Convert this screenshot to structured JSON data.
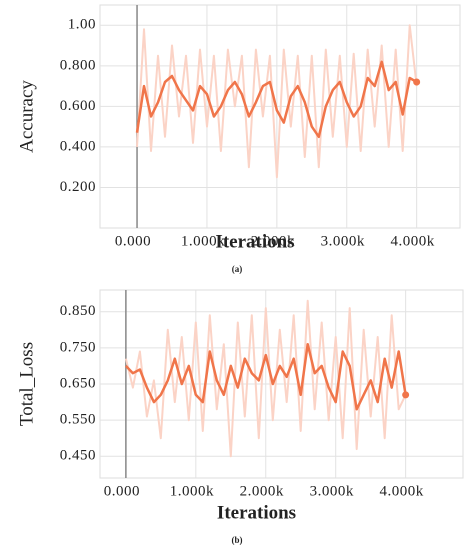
{
  "chart_data": [
    {
      "type": "line",
      "y_label": "Accuracy",
      "x_label": "Iterations",
      "caption": "(a)",
      "x": [
        0,
        100,
        200,
        300,
        400,
        500,
        600,
        700,
        800,
        900,
        1000,
        1100,
        1200,
        1300,
        1400,
        1500,
        1600,
        1700,
        1800,
        1900,
        2000,
        2100,
        2200,
        2300,
        2400,
        2500,
        2600,
        2700,
        2800,
        2900,
        3000,
        3100,
        3200,
        3300,
        3400,
        3500,
        3600,
        3700,
        3800,
        3900,
        4000
      ],
      "series": [
        {
          "color": "#fbd3c6",
          "values": [
            0.4,
            0.98,
            0.38,
            0.85,
            0.45,
            0.9,
            0.55,
            0.85,
            0.42,
            0.88,
            0.5,
            0.85,
            0.38,
            0.88,
            0.6,
            0.85,
            0.3,
            0.88,
            0.55,
            0.85,
            0.25,
            0.88,
            0.5,
            0.85,
            0.35,
            0.85,
            0.3,
            0.88,
            0.45,
            0.85,
            0.4,
            0.86,
            0.38,
            0.88,
            0.5,
            0.9,
            0.4,
            0.88,
            0.38,
            1.0,
            0.7
          ]
        },
        {
          "color": "#f0754a",
          "values": [
            0.47,
            0.7,
            0.55,
            0.62,
            0.72,
            0.75,
            0.68,
            0.63,
            0.58,
            0.7,
            0.66,
            0.55,
            0.6,
            0.68,
            0.72,
            0.66,
            0.55,
            0.62,
            0.7,
            0.72,
            0.58,
            0.52,
            0.65,
            0.7,
            0.62,
            0.5,
            0.45,
            0.6,
            0.68,
            0.72,
            0.62,
            0.55,
            0.6,
            0.74,
            0.7,
            0.82,
            0.68,
            0.72,
            0.56,
            0.74,
            0.72
          ]
        }
      ],
      "xlim": [
        -530,
        4620
      ],
      "ylim": [
        0.0,
        1.1
      ],
      "xticks": [
        {
          "value": 0,
          "label": "0.000"
        },
        {
          "value": 1000,
          "label": "1.000k"
        },
        {
          "value": 2000,
          "label": "2.000k"
        },
        {
          "value": 3000,
          "label": "3.000k"
        },
        {
          "value": 4000,
          "label": "4.000k"
        }
      ],
      "yticks": [
        {
          "value": 0.2,
          "label": "0.200"
        },
        {
          "value": 0.4,
          "label": "0.400"
        },
        {
          "value": 0.6,
          "label": "0.600"
        },
        {
          "value": 0.8,
          "label": "0.800"
        },
        {
          "value": 1,
          "label": "1.00"
        }
      ],
      "grid": true
    },
    {
      "type": "line",
      "y_label": "Total_Loss",
      "x_label": "Iterations",
      "caption": "(b)",
      "x": [
        0,
        100,
        200,
        300,
        400,
        500,
        600,
        700,
        800,
        900,
        1000,
        1100,
        1200,
        1300,
        1400,
        1500,
        1600,
        1700,
        1800,
        1900,
        2000,
        2100,
        2200,
        2300,
        2400,
        2500,
        2600,
        2700,
        2800,
        2900,
        3000,
        3100,
        3200,
        3300,
        3400,
        3500,
        3600,
        3700,
        3800,
        3900,
        4000
      ],
      "series": [
        {
          "color": "#fbd3c6",
          "values": [
            0.72,
            0.64,
            0.74,
            0.56,
            0.66,
            0.5,
            0.8,
            0.6,
            0.78,
            0.55,
            0.82,
            0.52,
            0.84,
            0.58,
            0.76,
            0.45,
            0.82,
            0.56,
            0.84,
            0.5,
            0.86,
            0.55,
            0.8,
            0.6,
            0.84,
            0.52,
            0.88,
            0.58,
            0.82,
            0.55,
            0.78,
            0.5,
            0.86,
            0.47,
            0.8,
            0.56,
            0.78,
            0.5,
            0.84,
            0.58,
            0.62
          ]
        },
        {
          "color": "#f0754a",
          "values": [
            0.7,
            0.68,
            0.69,
            0.64,
            0.6,
            0.62,
            0.66,
            0.72,
            0.65,
            0.7,
            0.62,
            0.6,
            0.74,
            0.66,
            0.62,
            0.7,
            0.64,
            0.72,
            0.68,
            0.66,
            0.73,
            0.65,
            0.7,
            0.67,
            0.72,
            0.62,
            0.76,
            0.68,
            0.7,
            0.64,
            0.6,
            0.74,
            0.7,
            0.58,
            0.62,
            0.66,
            0.6,
            0.72,
            0.64,
            0.74,
            0.62
          ]
        }
      ],
      "xlim": [
        -370,
        4820
      ],
      "ylim": [
        0.39,
        0.91
      ],
      "xticks": [
        {
          "value": 0,
          "label": "0.000"
        },
        {
          "value": 1000,
          "label": "1.000k"
        },
        {
          "value": 2000,
          "label": "2.000k"
        },
        {
          "value": 3000,
          "label": "3.000k"
        },
        {
          "value": 4000,
          "label": "4.000k"
        }
      ],
      "yticks": [
        {
          "value": 0.45,
          "label": "0.450"
        },
        {
          "value": 0.55,
          "label": "0.550"
        },
        {
          "value": 0.65,
          "label": "0.650"
        },
        {
          "value": 0.75,
          "label": "0.750"
        },
        {
          "value": 0.85,
          "label": "0.850"
        }
      ],
      "grid": true
    }
  ]
}
